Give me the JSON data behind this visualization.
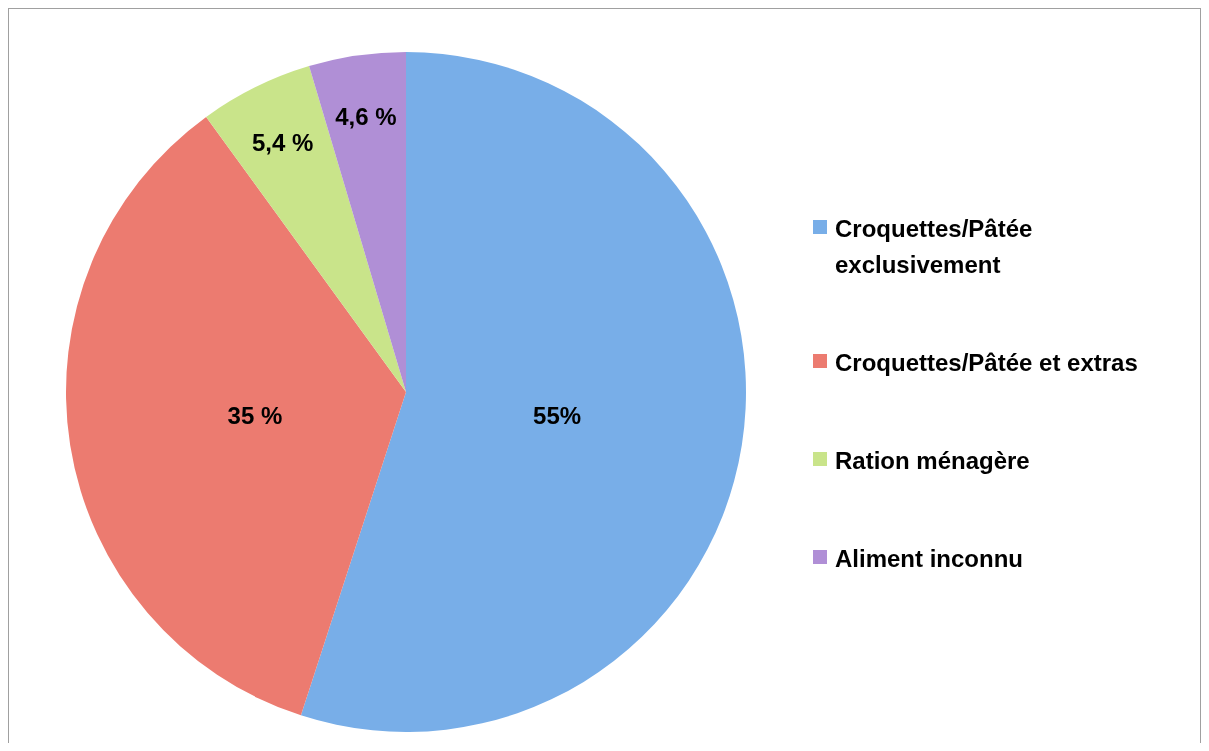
{
  "chart_data": {
    "type": "pie",
    "categories": [
      "Croquettes/Pâtée exclusivement",
      "Croquettes/Pâtée et extras",
      "Ration ménagère",
      "Aliment inconnu"
    ],
    "values": [
      55,
      35,
      5.4,
      4.6
    ],
    "colors": [
      "#78aee8",
      "#ec7b70",
      "#c9e48a",
      "#b08fd6"
    ],
    "value_labels": [
      "55%",
      "35 %",
      "5,4 %",
      "4,6 %"
    ],
    "legend": "right"
  }
}
